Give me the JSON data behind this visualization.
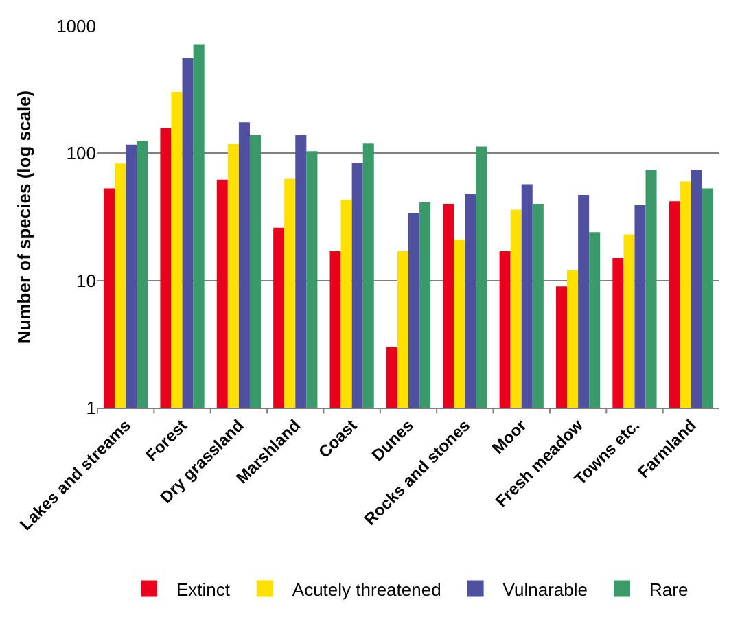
{
  "chart_data": {
    "type": "bar",
    "ylabel": "Number of species (log scale)",
    "categories": [
      "Lakes and streams",
      "Forest",
      "Dry grassland",
      "Marshland",
      "Coast",
      "Dunes",
      "Rocks and stones",
      "Moor",
      "Fresh meadow",
      "Towns etc.",
      "Farmland"
    ],
    "series": [
      {
        "name": "Extinct",
        "color": "#e8001c",
        "values": [
          53,
          158,
          62,
          26,
          17,
          3,
          40,
          17,
          9,
          15,
          42
        ]
      },
      {
        "name": "Acutely threatened",
        "color": "#ffe000",
        "values": [
          83,
          303,
          118,
          63,
          43,
          17,
          21,
          36,
          12,
          23,
          60
        ]
      },
      {
        "name": "Vulnarable",
        "color": "#5050a0",
        "values": [
          117,
          560,
          175,
          139,
          84,
          34,
          48,
          57,
          47,
          39,
          74
        ]
      },
      {
        "name": "Rare",
        "color": "#3a9a6a",
        "values": [
          124,
          720,
          139,
          104,
          119,
          41,
          113,
          40,
          24,
          74,
          53
        ]
      }
    ],
    "log": true,
    "ylim": [
      1,
      1000
    ],
    "yticks": [
      1,
      10,
      100,
      1000
    ],
    "grid": "y",
    "legend": "bottom"
  }
}
